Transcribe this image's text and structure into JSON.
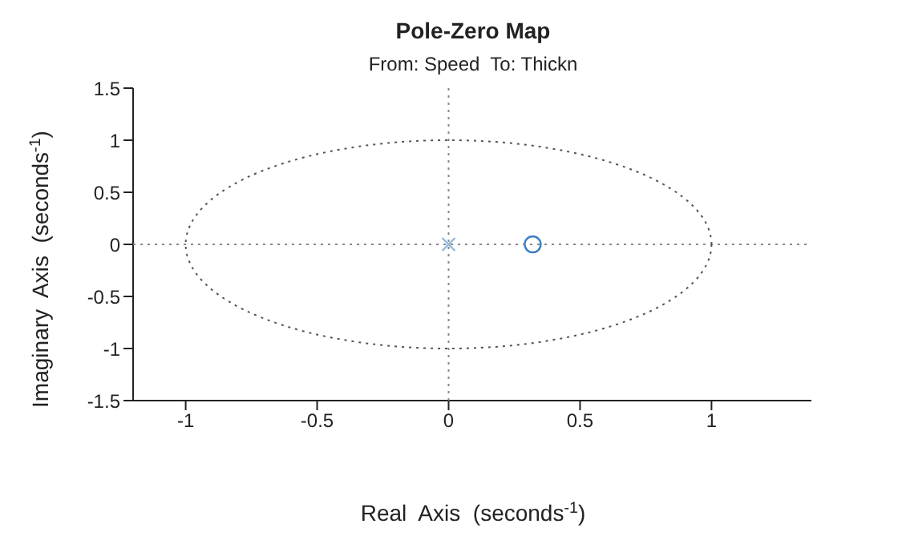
{
  "chart_data": {
    "type": "scatter",
    "title": "Pole-Zero Map",
    "subtitle": "From: Speed  To: Thickn",
    "xlabel": "Real  Axis  (seconds$^{-1}$)",
    "ylabel": "Imaginary  Axis  (seconds$^{-1}$)",
    "xlim": [
      -1.2,
      1.38
    ],
    "xticks": [
      -1,
      -0.5,
      0,
      0.5,
      1
    ],
    "ylim": [
      -1.5,
      1.5
    ],
    "yticks": [
      -1.5,
      -1,
      -0.5,
      0,
      0.5,
      1,
      1.5
    ],
    "series": [
      {
        "color": "#8fb8e0",
        "marker": "cross",
        "x": [
          0
        ],
        "values": [
          0
        ]
      },
      {
        "color": "#3a7fc4",
        "marker": "circle",
        "x": [
          0.32
        ],
        "values": [
          0
        ]
      }
    ]
  }
}
